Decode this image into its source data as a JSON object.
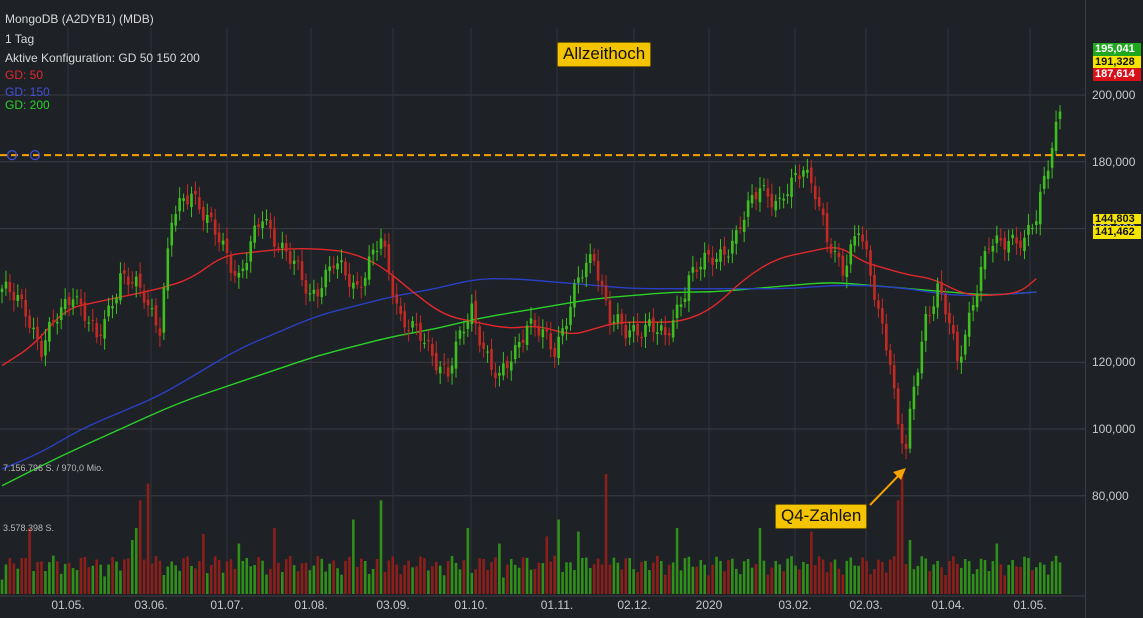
{
  "header": {
    "title": "MongoDB (A2DYB1) (MDB)",
    "interval": "1 Tag",
    "config": "Aktive Konfiguration: GD 50 150 200",
    "gd50": "GD: 50",
    "gd150": "GD: 150",
    "gd200": "GD: 200"
  },
  "annotations": {
    "allzeithoch": "Allzeithoch",
    "q4": "Q4-Zahlen"
  },
  "price_tags": {
    "last": "195,041",
    "level2": "191,328",
    "level3": "187,614",
    "gd150_value": "144,803",
    "gd200_value": "141,462"
  },
  "volume_labels": {
    "upper": "7.156.796 S. / 970,0 Mio.",
    "lower": "3.578.398 S."
  },
  "colors": {
    "background": "#1e2126",
    "up": "#3fbf1f",
    "down": "#c42a24",
    "vol_up": "#2f8f18",
    "vol_down": "#8c1f1a",
    "gd50": "#e0282a",
    "gd150": "#2a3fc4",
    "gd200": "#2ad12a",
    "ath_line": "#f5a300",
    "tag_last": "#1fa81f",
    "tag_level2": "#f5e400",
    "tag_level3": "#d8101a",
    "tag_gd200": "#f5e400"
  },
  "chart_data": {
    "type": "candlestick",
    "y_axis": {
      "ticks": [
        200000,
        180000,
        160000,
        120000,
        100000,
        80000
      ],
      "tick_labels": [
        "200,000",
        "180,000",
        "160,000",
        "120,000",
        "100,000",
        "80,000"
      ]
    },
    "x_axis": {
      "labels": [
        "01.05.",
        "03.06.",
        "01.07.",
        "01.08.",
        "03.09.",
        "01.10.",
        "01.11.",
        "02.12.",
        "2020",
        "03.02.",
        "02.03.",
        "01.04.",
        "01.05."
      ]
    },
    "ath_level": 182000,
    "anchors": [
      [
        0,
        142
      ],
      [
        6,
        136
      ],
      [
        10,
        124
      ],
      [
        18,
        142
      ],
      [
        24,
        126
      ],
      [
        30,
        146
      ],
      [
        36,
        140
      ],
      [
        40,
        131
      ],
      [
        43,
        162
      ],
      [
        48,
        172
      ],
      [
        54,
        158
      ],
      [
        60,
        146
      ],
      [
        66,
        163
      ],
      [
        72,
        153
      ],
      [
        78,
        140
      ],
      [
        84,
        149
      ],
      [
        90,
        143
      ],
      [
        96,
        156
      ],
      [
        101,
        134
      ],
      [
        108,
        124
      ],
      [
        113,
        117
      ],
      [
        119,
        136
      ],
      [
        124,
        118
      ],
      [
        126,
        114
      ],
      [
        133,
        132
      ],
      [
        140,
        124
      ],
      [
        146,
        144
      ],
      [
        150,
        152
      ],
      [
        154,
        134
      ],
      [
        158,
        128
      ],
      [
        164,
        132
      ],
      [
        168,
        126
      ],
      [
        174,
        146
      ],
      [
        180,
        151
      ],
      [
        186,
        157
      ],
      [
        192,
        174
      ],
      [
        197,
        166
      ],
      [
        203,
        180
      ],
      [
        206,
        171
      ],
      [
        209,
        155
      ],
      [
        213,
        149
      ],
      [
        217,
        160
      ],
      [
        220,
        145
      ],
      [
        223,
        131
      ],
      [
        225,
        122
      ],
      [
        227,
        100
      ],
      [
        229,
        93
      ],
      [
        231,
        112
      ],
      [
        234,
        134
      ],
      [
        237,
        142
      ],
      [
        240,
        131
      ],
      [
        242,
        120
      ],
      [
        246,
        139
      ],
      [
        250,
        154
      ],
      [
        255,
        158
      ],
      [
        259,
        155
      ],
      [
        262,
        163
      ],
      [
        264,
        176
      ],
      [
        266,
        186
      ],
      [
        268,
        195
      ]
    ],
    "ma_50": [
      [
        0,
        119
      ],
      [
        8,
        125
      ],
      [
        16,
        136
      ],
      [
        24,
        138
      ],
      [
        32,
        140
      ],
      [
        40,
        142
      ],
      [
        48,
        145
      ],
      [
        56,
        152
      ],
      [
        64,
        153
      ],
      [
        72,
        154
      ],
      [
        80,
        154
      ],
      [
        88,
        153
      ],
      [
        96,
        149
      ],
      [
        104,
        141
      ],
      [
        112,
        134
      ],
      [
        120,
        132
      ],
      [
        128,
        130
      ],
      [
        136,
        131
      ],
      [
        144,
        128
      ],
      [
        150,
        130
      ],
      [
        156,
        132
      ],
      [
        164,
        132
      ],
      [
        172,
        132
      ],
      [
        180,
        136
      ],
      [
        188,
        145
      ],
      [
        196,
        151
      ],
      [
        204,
        153
      ],
      [
        212,
        155
      ],
      [
        218,
        150
      ],
      [
        224,
        148
      ],
      [
        230,
        146
      ],
      [
        236,
        145
      ],
      [
        244,
        140
      ],
      [
        252,
        140
      ],
      [
        258,
        141
      ],
      [
        262,
        145
      ]
    ],
    "ma_150": [
      [
        0,
        88
      ],
      [
        10,
        93
      ],
      [
        20,
        100
      ],
      [
        30,
        105
      ],
      [
        40,
        110
      ],
      [
        50,
        117
      ],
      [
        60,
        124
      ],
      [
        70,
        129
      ],
      [
        80,
        134
      ],
      [
        90,
        137
      ],
      [
        100,
        140
      ],
      [
        110,
        142
      ],
      [
        120,
        145
      ],
      [
        130,
        145
      ],
      [
        140,
        144
      ],
      [
        150,
        143
      ],
      [
        160,
        142
      ],
      [
        170,
        142
      ],
      [
        180,
        142
      ],
      [
        190,
        142
      ],
      [
        200,
        142
      ],
      [
        210,
        143
      ],
      [
        220,
        143
      ],
      [
        230,
        142
      ],
      [
        240,
        140
      ],
      [
        250,
        140
      ],
      [
        262,
        141
      ]
    ],
    "ma_200": [
      [
        0,
        83
      ],
      [
        15,
        92
      ],
      [
        30,
        100
      ],
      [
        45,
        108
      ],
      [
        60,
        114
      ],
      [
        70,
        118
      ],
      [
        80,
        122
      ],
      [
        90,
        125
      ],
      [
        100,
        128
      ],
      [
        110,
        130
      ],
      [
        120,
        133
      ],
      [
        130,
        135
      ],
      [
        140,
        137
      ],
      [
        150,
        139
      ],
      [
        160,
        140
      ],
      [
        170,
        141
      ],
      [
        180,
        141
      ],
      [
        190,
        142
      ],
      [
        200,
        143
      ],
      [
        210,
        144
      ],
      [
        220,
        143
      ],
      [
        230,
        142
      ],
      [
        240,
        141
      ],
      [
        250,
        140
      ],
      [
        262,
        141
      ]
    ],
    "volume_spikes": [
      [
        7,
        0.55
      ],
      [
        33,
        0.45
      ],
      [
        34,
        0.55
      ],
      [
        35,
        0.78
      ],
      [
        37,
        0.92
      ],
      [
        51,
        0.5
      ],
      [
        60,
        0.42
      ],
      [
        69,
        0.55
      ],
      [
        89,
        0.62
      ],
      [
        96,
        0.78
      ],
      [
        118,
        0.55
      ],
      [
        126,
        0.42
      ],
      [
        138,
        0.48
      ],
      [
        141,
        0.62
      ],
      [
        146,
        0.52
      ],
      [
        153,
        1.0
      ],
      [
        171,
        0.55
      ],
      [
        192,
        0.55
      ],
      [
        205,
        0.52
      ],
      [
        227,
        0.78
      ],
      [
        228,
        1.0
      ],
      [
        230,
        0.45
      ],
      [
        252,
        0.42
      ]
    ],
    "candle_count": 269
  }
}
